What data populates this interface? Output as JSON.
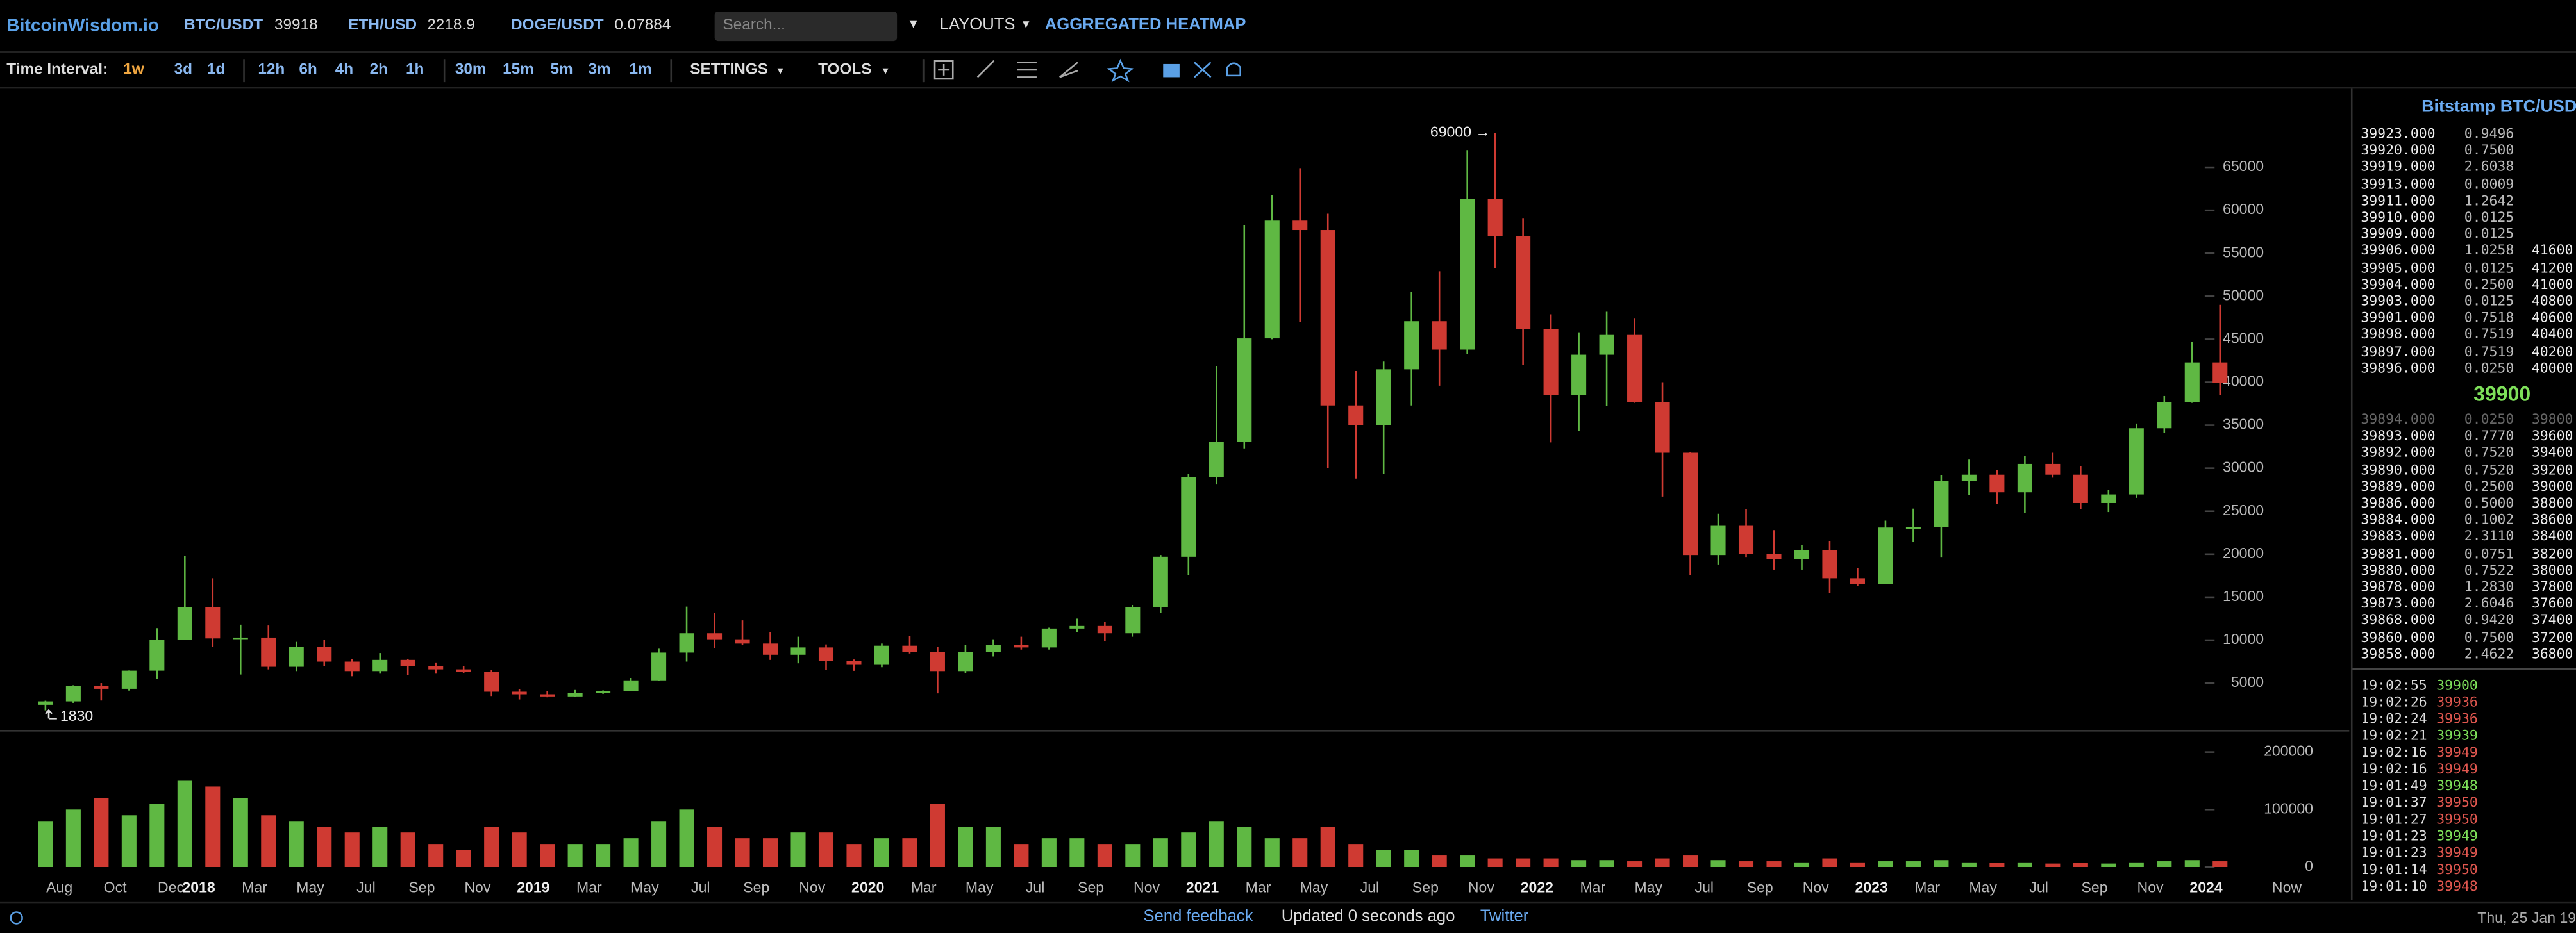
{
  "header": {
    "logo": "BitcoinWisdom.io",
    "tickers": [
      {
        "pair": "BTC/USDT",
        "price": "39918"
      },
      {
        "pair": "ETH/USD",
        "price": "2218.9"
      },
      {
        "pair": "DOGE/USDT",
        "price": "0.07884"
      }
    ],
    "search_placeholder": "Search...",
    "layouts": "LAYOUTS",
    "heatmap": "AGGREGATED HEATMAP"
  },
  "toolbar": {
    "label": "Time Interval:",
    "intervals": [
      "1w",
      "3d",
      "1d",
      "12h",
      "6h",
      "4h",
      "2h",
      "1h",
      "30m",
      "15m",
      "5m",
      "3m",
      "1m"
    ],
    "active_index": 0,
    "settings": "SETTINGS",
    "tools": "TOOLS"
  },
  "chart_data": {
    "type": "candlestick",
    "categories": [
      null,
      "Aug",
      null,
      "Oct",
      null,
      "Dec",
      "2018",
      null,
      "Mar",
      null,
      "May",
      null,
      "Jul",
      null,
      "Sep",
      null,
      "Nov",
      null,
      "2019",
      null,
      "Mar",
      null,
      "May",
      null,
      "Jul",
      null,
      "Sep",
      null,
      "Nov",
      null,
      "2020",
      null,
      "Mar",
      null,
      "May",
      null,
      "Jul",
      null,
      "Sep",
      null,
      "Nov",
      null,
      "2021",
      null,
      "Mar",
      null,
      "May",
      null,
      "Jul",
      null,
      "Sep",
      null,
      "Nov",
      null,
      "2022",
      null,
      "Mar",
      null,
      "May",
      null,
      "Jul",
      null,
      "Sep",
      null,
      "Nov",
      null,
      "2023",
      null,
      "Mar",
      null,
      "May",
      null,
      "Jul",
      null,
      "Sep",
      null,
      "Nov",
      null,
      "2024"
    ],
    "now_label": "Now",
    "open": [
      2480,
      2875,
      4700,
      4340,
      6450,
      10000,
      13800,
      10200,
      10300,
      6900,
      9200,
      7500,
      6400,
      7700,
      7000,
      6600,
      6300,
      4000,
      3700,
      3450,
      3850,
      4100,
      5320,
      8550,
      10800,
      10100,
      9600,
      8300,
      9150,
      7550,
      7200,
      9350,
      8600,
      6400,
      8650,
      9450,
      9150,
      11350,
      11650,
      10800,
      13800,
      19700,
      29000,
      33100,
      45100,
      58800,
      57700,
      37300,
      35000,
      41500,
      47100,
      43800,
      61300,
      57000,
      46200,
      38500,
      43200,
      45500,
      37700,
      31800,
      19900,
      23300,
      20050,
      19400,
      20500,
      17200,
      16550,
      23100,
      23150,
      28500,
      29250,
      27200,
      30500,
      29250,
      25950,
      26950,
      34650,
      37700,
      42300
    ],
    "high": [
      2950,
      4750,
      5000,
      6470,
      11400,
      19800,
      17200,
      11800,
      11700,
      9800,
      10000,
      7800,
      8500,
      7800,
      7400,
      7000,
      6500,
      4300,
      4100,
      4200,
      4150,
      5600,
      9000,
      13900,
      13200,
      12300,
      10900,
      10400,
      9500,
      7750,
      9600,
      10500,
      9200,
      9450,
      10100,
      10400,
      11450,
      12500,
      12100,
      14100,
      19900,
      29300,
      41900,
      58300,
      61800,
      64900,
      59600,
      41300,
      42400,
      50500,
      52900,
      67000,
      69000,
      59100,
      47900,
      45800,
      48200,
      47400,
      40000,
      31900,
      24700,
      25200,
      22800,
      21100,
      21500,
      18400,
      23900,
      25300,
      29200,
      31000,
      29800,
      31400,
      31800,
      30200,
      27500,
      35200,
      38400,
      44700,
      49000
    ],
    "low": [
      1830,
      2700,
      2975,
      4130,
      5500,
      10500,
      9200,
      6000,
      6600,
      6400,
      7000,
      5800,
      6100,
      5900,
      6100,
      6200,
      3500,
      3100,
      3350,
      3380,
      3750,
      4050,
      5300,
      7500,
      9100,
      9400,
      7700,
      7300,
      6550,
      6430,
      6850,
      8450,
      3800,
      6150,
      8100,
      8900,
      8900,
      10950,
      9850,
      10400,
      13200,
      17600,
      28100,
      32300,
      45000,
      47000,
      30000,
      28800,
      29300,
      37300,
      39600,
      43300,
      53300,
      42000,
      33000,
      34300,
      37200,
      37600,
      26700,
      17600,
      18800,
      19600,
      18200,
      18200,
      15500,
      16300,
      16500,
      21400,
      19600,
      26900,
      25800,
      24800,
      28900,
      25200,
      24900,
      26550,
      34100,
      37600,
      38500
    ],
    "close": [
      2875,
      4700,
      4340,
      6450,
      10000,
      13800,
      10200,
      10300,
      6900,
      9200,
      7500,
      6400,
      7700,
      7000,
      6600,
      6300,
      4000,
      3700,
      3450,
      3850,
      4100,
      5320,
      8550,
      10800,
      10100,
      9600,
      8300,
      9150,
      7550,
      7200,
      9350,
      8600,
      6400,
      8650,
      9450,
      9150,
      11350,
      11650,
      10800,
      13800,
      19700,
      29000,
      33100,
      45100,
      58800,
      57700,
      37300,
      35000,
      41500,
      47100,
      43800,
      61300,
      57000,
      46200,
      38500,
      43200,
      45500,
      37700,
      31800,
      19900,
      23300,
      20050,
      19400,
      20500,
      17200,
      16550,
      23100,
      23150,
      28500,
      29250,
      27200,
      30500,
      29250,
      25950,
      26950,
      34650,
      37700,
      42300,
      39900
    ],
    "volume": [
      80000,
      100000,
      120000,
      90000,
      110000,
      150000,
      140000,
      120000,
      90000,
      80000,
      70000,
      60000,
      70000,
      60000,
      40000,
      30000,
      70000,
      60000,
      40000,
      40000,
      40000,
      50000,
      80000,
      100000,
      70000,
      50000,
      50000,
      60000,
      60000,
      40000,
      50000,
      50000,
      110000,
      70000,
      70000,
      40000,
      50000,
      50000,
      40000,
      40000,
      50000,
      60000,
      80000,
      70000,
      50000,
      50000,
      70000,
      40000,
      30000,
      30000,
      20000,
      20000,
      15000,
      15000,
      15000,
      12000,
      12000,
      10000,
      15000,
      20000,
      12000,
      10000,
      10000,
      8000,
      15000,
      8000,
      10000,
      10000,
      12000,
      8000,
      7000,
      8000,
      6000,
      7000,
      6000,
      8000,
      10000,
      12000,
      10000
    ],
    "up_color": "#5fb843",
    "down_color": "#cf3a32",
    "ylim": [
      0,
      73000
    ],
    "yticks": [
      5000,
      10000,
      15000,
      20000,
      25000,
      30000,
      35000,
      40000,
      45000,
      50000,
      55000,
      60000,
      65000
    ],
    "volume_ylim": [
      0,
      230000
    ],
    "volume_yticks": [
      0,
      100000,
      200000
    ],
    "annotations": {
      "high": {
        "value": 69000,
        "label": "69000 →"
      },
      "low": 1830
    }
  },
  "order_book": {
    "title": "Bitstamp BTC/USD",
    "asks": [
      [
        "39923.000",
        "0.9496"
      ],
      [
        "39920.000",
        "0.7500"
      ],
      [
        "39919.000",
        "2.6038"
      ],
      [
        "39913.000",
        "0.0009"
      ],
      [
        "39911.000",
        "1.2642"
      ],
      [
        "39910.000",
        "0.0125"
      ],
      [
        "39909.000",
        "0.0125"
      ],
      [
        "39906.000",
        "1.0258",
        "41600"
      ],
      [
        "39905.000",
        "0.0125",
        "41200"
      ],
      [
        "39904.000",
        "0.2500",
        "41000"
      ],
      [
        "39903.000",
        "0.0125",
        "40800"
      ],
      [
        "39901.000",
        "0.7518",
        "40600"
      ],
      [
        "39898.000",
        "0.7519",
        "40400"
      ],
      [
        "39897.000",
        "0.7519",
        "40200"
      ],
      [
        "39896.000",
        "0.0250",
        "40000"
      ]
    ],
    "last_price": "39900",
    "bids": [
      [
        "39894.000",
        "0.0250",
        "39800"
      ],
      [
        "39893.000",
        "0.7770",
        "39600"
      ],
      [
        "39892.000",
        "0.7520",
        "39400"
      ],
      [
        "39890.000",
        "0.7520",
        "39200"
      ],
      [
        "39889.000",
        "0.2500",
        "39000"
      ],
      [
        "39886.000",
        "0.5000",
        "38800"
      ],
      [
        "39884.000",
        "0.1002",
        "38600"
      ],
      [
        "39883.000",
        "2.3110",
        "38400"
      ],
      [
        "39881.000",
        "0.0751",
        "38200"
      ],
      [
        "39880.000",
        "0.7522",
        "38000"
      ],
      [
        "39878.000",
        "1.2830",
        "37800"
      ],
      [
        "39873.000",
        "2.6046",
        "37600"
      ],
      [
        "39868.000",
        "0.9420",
        "37400"
      ],
      [
        "39860.000",
        "0.7500",
        "37200"
      ],
      [
        "39858.000",
        "2.4622",
        "36800"
      ]
    ]
  },
  "trades": [
    {
      "time": "19:02:55",
      "price": "39900",
      "color": "#7ee05a"
    },
    {
      "time": "19:02:26",
      "price": "39936",
      "color": "#e0574f"
    },
    {
      "time": "19:02:24",
      "price": "39936",
      "color": "#e0574f"
    },
    {
      "time": "19:02:21",
      "price": "39939",
      "color": "#7ee05a"
    },
    {
      "time": "19:02:16",
      "price": "39949",
      "color": "#e0574f"
    },
    {
      "time": "19:02:16",
      "price": "39949",
      "color": "#e0574f"
    },
    {
      "time": "19:01:49",
      "price": "39948",
      "color": "#7ee05a"
    },
    {
      "time": "19:01:37",
      "price": "39950",
      "color": "#e0574f"
    },
    {
      "time": "19:01:27",
      "price": "39950",
      "color": "#e0574f"
    },
    {
      "time": "19:01:23",
      "price": "39949",
      "color": "#7ee05a"
    },
    {
      "time": "19:01:23",
      "price": "39949",
      "color": "#e0574f"
    },
    {
      "time": "19:01:14",
      "price": "39950",
      "color": "#e0574f"
    },
    {
      "time": "19:01:10",
      "price": "39948",
      "color": "#e0574f"
    }
  ],
  "footer": {
    "feedback": "Send feedback",
    "status": "Updated 0 seconds ago",
    "twitter": "Twitter",
    "datetime": "Thu, 25 Jan 19"
  }
}
